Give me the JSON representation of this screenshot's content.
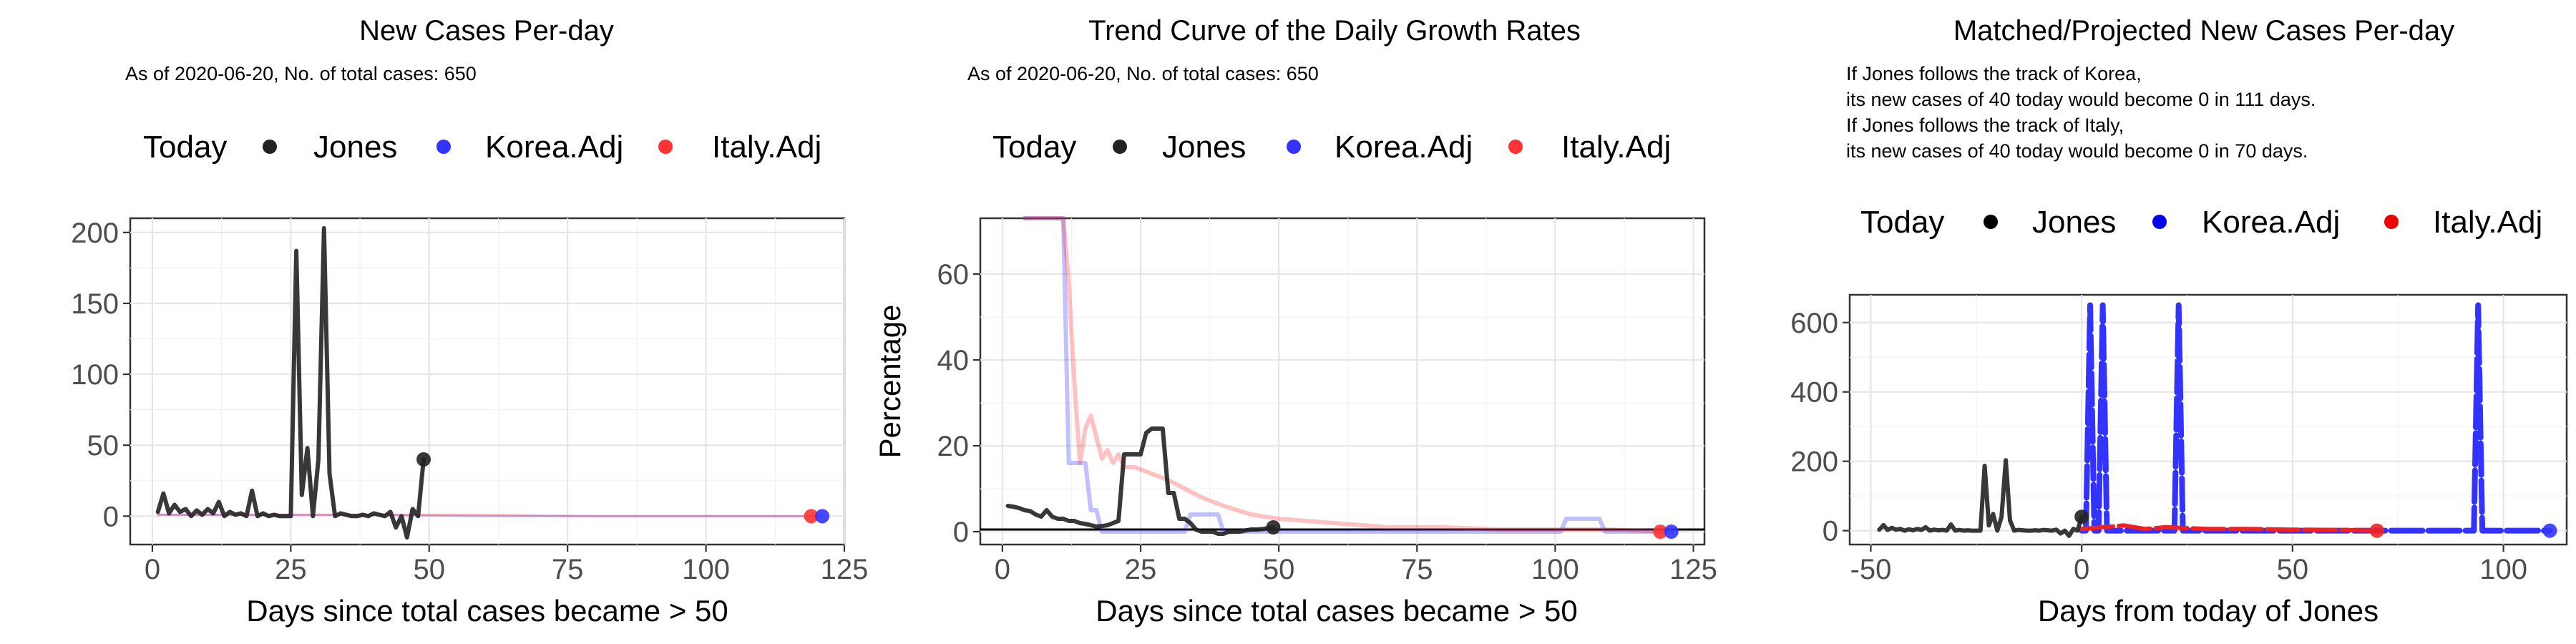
{
  "chart_data": [
    {
      "type": "line",
      "title": "New Cases Per-day",
      "subtitle": "As of 2020-06-20, No. of total cases: 650",
      "legend": {
        "title": "Today",
        "position": "top",
        "entries": [
          "Jones",
          "Korea.Adj",
          "Italy.Adj"
        ]
      },
      "xlabel": "Days since total cases became > 50",
      "ylabel": "",
      "xlim": [
        -4,
        125
      ],
      "ylim": [
        -20,
        210
      ],
      "xticks": [
        0,
        25,
        50,
        75,
        100,
        125
      ],
      "yticks": [
        0,
        50,
        100,
        150,
        200
      ],
      "grid": true,
      "series": [
        {
          "name": "Korea.Adj",
          "color": "#3333ff",
          "opacity": 0.3,
          "width": 3,
          "x": [
            1,
            20,
            40,
            60,
            80,
            100,
            121
          ],
          "y": [
            1,
            1,
            1,
            0,
            0,
            0,
            0
          ]
        },
        {
          "name": "Italy.Adj",
          "color": "#ff3333",
          "opacity": 0.3,
          "width": 3,
          "x": [
            1,
            20,
            40,
            60,
            80,
            100,
            119
          ],
          "y": [
            1,
            1,
            1,
            1,
            0,
            0,
            0
          ]
        },
        {
          "name": "Jones",
          "color": "#222222",
          "opacity": 0.9,
          "width": 6,
          "x": [
            1,
            2,
            3,
            4,
            5,
            6,
            7,
            8,
            9,
            10,
            11,
            12,
            13,
            14,
            15,
            16,
            17,
            18,
            19,
            20,
            21,
            22,
            23,
            24,
            25,
            26,
            27,
            28,
            29,
            30,
            31,
            32,
            33,
            34,
            35,
            36,
            37,
            38,
            39,
            40,
            41,
            42,
            43,
            44,
            45,
            46,
            47,
            48,
            49
          ],
          "y": [
            3,
            16,
            2,
            8,
            3,
            5,
            0,
            4,
            1,
            5,
            2,
            10,
            0,
            3,
            1,
            2,
            0,
            18,
            0,
            2,
            0,
            1,
            0,
            0,
            0,
            187,
            15,
            48,
            0,
            40,
            203,
            30,
            0,
            2,
            1,
            0,
            0,
            1,
            0,
            2,
            1,
            0,
            3,
            -8,
            0,
            -15,
            5,
            0,
            40
          ]
        }
      ],
      "today_points": [
        {
          "name": "Italy.Adj",
          "x": 119,
          "y": 0,
          "color": "#ff3333"
        },
        {
          "name": "Korea.Adj",
          "x": 121,
          "y": 0,
          "color": "#3333ff"
        },
        {
          "name": "Jones",
          "x": 49,
          "y": 40,
          "color": "#222222"
        }
      ]
    },
    {
      "type": "line",
      "title": "Trend Curve of the Daily Growth Rates",
      "subtitle": "As of 2020-06-20, No. of total cases: 650",
      "legend": {
        "title": "Today",
        "position": "top",
        "entries": [
          "Jones",
          "Korea.Adj",
          "Italy.Adj"
        ]
      },
      "xlabel": "Days since total cases became > 50",
      "ylabel": "Percentage",
      "xlim": [
        -4,
        127
      ],
      "ylim": [
        -3,
        73
      ],
      "xticks": [
        0,
        25,
        50,
        75,
        100,
        125
      ],
      "yticks": [
        0,
        20,
        40,
        60
      ],
      "grid": true,
      "hline": 0.5,
      "series": [
        {
          "name": "Korea.Adj",
          "color": "#3333ff",
          "opacity": 0.3,
          "width": 6,
          "x": [
            4,
            11,
            12,
            13,
            15,
            16,
            17,
            18,
            20,
            33,
            34,
            39,
            40,
            101,
            102,
            108,
            109,
            121
          ],
          "y": [
            75,
            75,
            16,
            16,
            16,
            5,
            5,
            0,
            0,
            0,
            4,
            4,
            0,
            0,
            3,
            3,
            0,
            0
          ]
        },
        {
          "name": "Italy.Adj",
          "color": "#ff3333",
          "opacity": 0.3,
          "width": 6,
          "x": [
            4,
            11,
            12,
            13,
            14,
            15,
            16,
            17,
            18,
            19,
            20,
            21,
            22,
            24,
            26,
            28,
            30,
            33,
            36,
            40,
            45,
            50,
            60,
            70,
            80,
            90,
            100,
            110,
            119
          ],
          "y": [
            75,
            75,
            58,
            35,
            16,
            24,
            27,
            22,
            17,
            19,
            16,
            18,
            15,
            15,
            14,
            13,
            12,
            10,
            8,
            6,
            4,
            3,
            2,
            1,
            1,
            0.5,
            0.5,
            0.5,
            0
          ]
        },
        {
          "name": "Jones",
          "color": "#222222",
          "opacity": 0.9,
          "width": 6,
          "x": [
            1,
            2,
            3,
            4,
            5,
            6,
            7,
            8,
            9,
            10,
            11,
            12,
            13,
            14,
            15,
            16,
            17,
            18,
            19,
            20,
            21,
            22,
            23,
            24,
            25,
            26,
            27,
            28,
            29,
            30,
            31,
            32,
            33,
            34,
            35,
            36,
            37,
            38,
            39,
            40,
            41,
            42,
            43,
            44,
            45,
            46,
            47,
            48,
            49
          ],
          "y": [
            6,
            5.8,
            5.5,
            5,
            4.8,
            4,
            3.5,
            5,
            3.5,
            3,
            3,
            2.5,
            2.5,
            2,
            1.8,
            1.5,
            1.2,
            1.3,
            1.5,
            2,
            2.5,
            18,
            18,
            18,
            18,
            23,
            24,
            24,
            24,
            9,
            9,
            3,
            3,
            2,
            0.5,
            0,
            0,
            0,
            -0.5,
            -0.5,
            0,
            0,
            0,
            0.3,
            0.5,
            0.5,
            0.6,
            0.8,
            1
          ]
        }
      ],
      "today_points": [
        {
          "name": "Italy.Adj",
          "x": 119,
          "y": 0,
          "color": "#ff3333"
        },
        {
          "name": "Korea.Adj",
          "x": 121,
          "y": 0,
          "color": "#3333ff"
        },
        {
          "name": "Jones",
          "x": 49,
          "y": 1,
          "color": "#222222"
        }
      ]
    },
    {
      "type": "line",
      "title": "Matched/Projected New Cases Per-day",
      "subtitle_lines": [
        "If Jones follows the track of Korea,",
        "its new cases of 40 today would become 0 in 111 days.",
        "If Jones follows the track of Italy,",
        "its new cases of 40 today would become 0 in 70 days."
      ],
      "legend": {
        "title": "Today",
        "position": "top",
        "entries": [
          "Jones",
          "Korea.Adj",
          "Italy.Adj"
        ]
      },
      "xlabel": "Days from today of Jones",
      "ylabel": "",
      "xlim": [
        -55,
        115
      ],
      "ylim": [
        -40,
        680
      ],
      "xticks": [
        -50,
        0,
        50,
        100
      ],
      "yticks": [
        0,
        200,
        400,
        600
      ],
      "grid": true,
      "series": [
        {
          "name": "Korea.Adj",
          "color": "#3333ff",
          "opacity": 1,
          "width": 8,
          "dashed": true,
          "x": [
            0,
            1,
            2,
            3,
            4,
            5,
            6,
            7,
            20,
            21,
            22,
            23,
            24,
            25,
            26,
            90,
            91,
            92,
            93,
            94,
            95,
            96,
            111
          ],
          "y": [
            0,
            0,
            650,
            0,
            0,
            650,
            0,
            0,
            0,
            0,
            0,
            650,
            0,
            0,
            0,
            0,
            0,
            0,
            0,
            650,
            0,
            0,
            0
          ]
        },
        {
          "name": "Italy.Adj",
          "color": "#ee2222",
          "opacity": 1,
          "width": 6,
          "dashed": true,
          "x": [
            0,
            5,
            10,
            15,
            20,
            30,
            40,
            50,
            60,
            70
          ],
          "y": [
            5,
            10,
            15,
            5,
            10,
            5,
            5,
            3,
            2,
            0
          ]
        },
        {
          "name": "Jones",
          "color": "#222222",
          "opacity": 0.9,
          "width": 6,
          "x": [
            -48,
            -47,
            -46,
            -45,
            -44,
            -43,
            -42,
            -41,
            -40,
            -39,
            -38,
            -37,
            -36,
            -35,
            -34,
            -33,
            -32,
            -31,
            -30,
            -29,
            -28,
            -27,
            -26,
            -25,
            -24,
            -23,
            -22,
            -21,
            -20,
            -19,
            -18,
            -17,
            -16,
            -15,
            -14,
            -13,
            -12,
            -11,
            -10,
            -9,
            -8,
            -7,
            -6,
            -5,
            -4,
            -3,
            -2,
            -1,
            0
          ],
          "y": [
            3,
            16,
            2,
            8,
            3,
            5,
            0,
            4,
            1,
            5,
            2,
            10,
            0,
            3,
            1,
            2,
            0,
            18,
            0,
            2,
            0,
            1,
            0,
            0,
            0,
            187,
            15,
            48,
            0,
            40,
            203,
            30,
            0,
            2,
            1,
            0,
            0,
            1,
            0,
            2,
            1,
            0,
            3,
            -8,
            0,
            -15,
            5,
            0,
            40
          ]
        }
      ],
      "today_points": [
        {
          "name": "Italy.Adj",
          "x": 70,
          "y": 0,
          "color": "#ee2222"
        },
        {
          "name": "Korea.Adj",
          "x": 111,
          "y": 0,
          "color": "#3333ff"
        },
        {
          "name": "Jones",
          "x": 0,
          "y": 40,
          "color": "#222222"
        }
      ]
    }
  ]
}
